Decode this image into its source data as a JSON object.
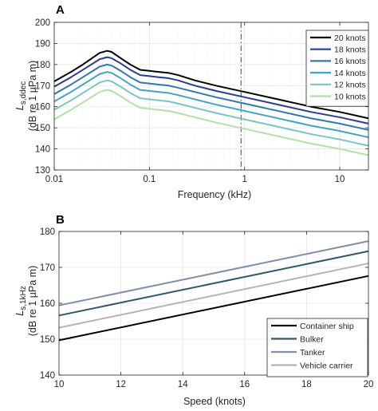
{
  "chart_data": [
    {
      "panel": "A",
      "type": "line",
      "xlabel": "Frequency (kHz)",
      "ylabel_main": "L",
      "ylabel_sub": "s,ddec",
      "ylabel_unit": "(dB re 1 µPa m)",
      "x_scale": "log",
      "xlim": [
        0.01,
        20
      ],
      "ylim": [
        130,
        200
      ],
      "x_ticks": [
        0.01,
        0.1,
        1,
        10
      ],
      "x_tick_labels": [
        "0.01",
        "0.1",
        "1",
        "10"
      ],
      "y_ticks": [
        130,
        140,
        150,
        160,
        170,
        180,
        190,
        200
      ],
      "y_tick_labels": [
        "130",
        "140",
        "150",
        "160",
        "170",
        "180",
        "190",
        "200"
      ],
      "grid": true,
      "legend_position": "top-right",
      "vline": {
        "x": 0.92,
        "style": "dash-dot",
        "color": "#707070"
      },
      "x": [
        0.01,
        0.015,
        0.02,
        0.03,
        0.036,
        0.04,
        0.05,
        0.063,
        0.08,
        0.1,
        0.125,
        0.16,
        0.2,
        0.3,
        0.5,
        1,
        2,
        5,
        10,
        20
      ],
      "series": [
        {
          "name": "20 knots",
          "color": "#000000",
          "values": [
            172,
            176.5,
            180,
            185.5,
            186.5,
            186,
            183,
            180,
            177.5,
            177,
            176.5,
            176,
            175,
            172.5,
            170,
            167,
            164,
            160,
            157.5,
            154.5
          ]
        },
        {
          "name": "18 knots",
          "color": "#2b3d8c",
          "values": [
            169.5,
            174,
            177.5,
            182.5,
            183.5,
            183,
            180.5,
            177.5,
            175,
            174.5,
            174,
            173.5,
            172.5,
            170,
            167.5,
            164.5,
            161.5,
            157.5,
            155,
            152
          ]
        },
        {
          "name": "16 knots",
          "color": "#2e78ab",
          "values": [
            166,
            170.5,
            174,
            179,
            180,
            179.5,
            177,
            174,
            171.5,
            171,
            170.5,
            170,
            169,
            167,
            164.5,
            161.5,
            158.5,
            154.5,
            152,
            149
          ]
        },
        {
          "name": "14 knots",
          "color": "#44a3c3",
          "values": [
            162.5,
            167,
            170.5,
            175.5,
            176.5,
            176,
            173.5,
            170.5,
            168,
            167.5,
            167,
            166.5,
            165.5,
            163.5,
            161,
            158,
            155,
            151,
            148.5,
            145.5
          ]
        },
        {
          "name": "12 knots",
          "color": "#7cc3c4",
          "values": [
            158.5,
            163,
            166.5,
            171.5,
            172.5,
            172,
            169.5,
            166.5,
            164,
            163.5,
            163,
            162.5,
            161.5,
            159.5,
            157,
            154,
            151,
            147,
            144.5,
            141.5
          ]
        },
        {
          "name": "10 knots",
          "color": "#b5dfa8",
          "values": [
            154,
            158.5,
            162,
            167,
            168,
            167.5,
            165,
            162,
            159.5,
            159,
            158.5,
            158,
            157,
            155,
            152.5,
            149.5,
            146.5,
            142.5,
            140,
            137
          ]
        }
      ]
    },
    {
      "panel": "B",
      "type": "line",
      "xlabel": "Speed (knots)",
      "ylabel_main": "L",
      "ylabel_sub": "s,1kHz",
      "ylabel_unit": "(dB re 1 µPa m)",
      "x_scale": "linear",
      "xlim": [
        10,
        20
      ],
      "ylim": [
        140,
        180
      ],
      "x_ticks": [
        10,
        12,
        14,
        16,
        18,
        20
      ],
      "x_tick_labels": [
        "10",
        "12",
        "14",
        "16",
        "18",
        "20"
      ],
      "y_ticks": [
        140,
        150,
        160,
        170,
        180
      ],
      "y_tick_labels": [
        "140",
        "150",
        "160",
        "170",
        "180"
      ],
      "grid": true,
      "legend_position": "bottom-right",
      "x": [
        10,
        20
      ],
      "series": [
        {
          "name": "Container ship",
          "color": "#000000",
          "values": [
            149.7,
            167.6
          ]
        },
        {
          "name": "Bulker",
          "color": "#2d5a64",
          "values": [
            156.6,
            174.5
          ]
        },
        {
          "name": "Tanker",
          "color": "#7f8fa6",
          "values": [
            159.4,
            177.3
          ]
        },
        {
          "name": "Vehicle carrier",
          "color": "#b4b4b4",
          "values": [
            153.2,
            171.1
          ]
        }
      ]
    }
  ]
}
